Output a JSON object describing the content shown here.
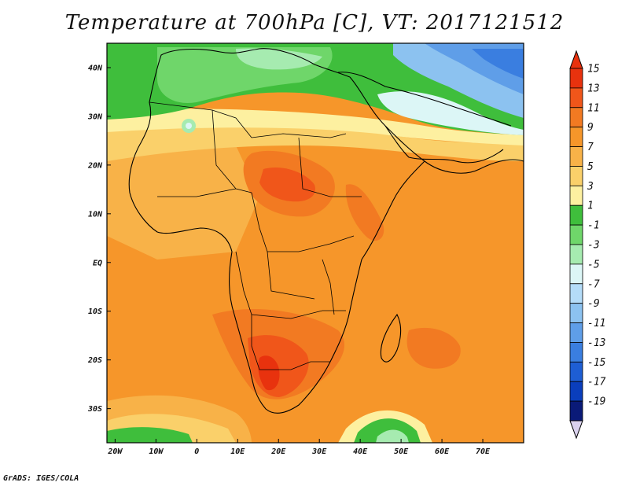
{
  "title": "Temperature at 700hPa [C], VT: 2017121512",
  "footer": "GrADS: IGES/COLA",
  "map": {
    "variable": "Temperature at 700hPa",
    "units": "C",
    "valid_time": "2017121512",
    "lon_range": [
      -22,
      80
    ],
    "lat_range": [
      -37,
      45
    ],
    "lat_labels": [
      {
        "value": 40,
        "text": "40N"
      },
      {
        "value": 30,
        "text": "30N"
      },
      {
        "value": 20,
        "text": "20N"
      },
      {
        "value": 10,
        "text": "10N"
      },
      {
        "value": 0,
        "text": "EQ"
      },
      {
        "value": -10,
        "text": "10S"
      },
      {
        "value": -20,
        "text": "20S"
      },
      {
        "value": -30,
        "text": "30S"
      }
    ],
    "lon_labels": [
      {
        "value": -20,
        "text": "20W"
      },
      {
        "value": -10,
        "text": "10W"
      },
      {
        "value": 0,
        "text": "0"
      },
      {
        "value": 10,
        "text": "10E"
      },
      {
        "value": 20,
        "text": "20E"
      },
      {
        "value": 30,
        "text": "30E"
      },
      {
        "value": 40,
        "text": "40E"
      },
      {
        "value": 50,
        "text": "50E"
      },
      {
        "value": 60,
        "text": "60E"
      },
      {
        "value": 70,
        "text": "70E"
      }
    ]
  },
  "colorbar": {
    "levels": [
      {
        "label": "15",
        "color": "#e8320e"
      },
      {
        "label": "13",
        "color": "#f0561a"
      },
      {
        "label": "11",
        "color": "#f27a22"
      },
      {
        "label": "9",
        "color": "#f6962a"
      },
      {
        "label": "7",
        "color": "#f8b248"
      },
      {
        "label": "5",
        "color": "#fad06a"
      },
      {
        "label": "3",
        "color": "#fdf0a0"
      },
      {
        "label": "1",
        "color": "#3fbe3c"
      },
      {
        "label": "-1",
        "color": "#6fd66a"
      },
      {
        "label": "-3",
        "color": "#a6ebb0"
      },
      {
        "label": "-5",
        "color": "#dcf6f6"
      },
      {
        "label": "-7",
        "color": "#b4dcf8"
      },
      {
        "label": "-9",
        "color": "#8cc2f0"
      },
      {
        "label": "-11",
        "color": "#5f9ee8"
      },
      {
        "label": "-13",
        "color": "#3a7ee0"
      },
      {
        "label": "-15",
        "color": "#1e5ed4"
      },
      {
        "label": "-17",
        "color": "#0a3ebc"
      },
      {
        "label": "-19",
        "color": "#0a1a78"
      }
    ],
    "top_arrow_color": "#e8320e",
    "bottom_arrow_color": "#dad2ee"
  }
}
